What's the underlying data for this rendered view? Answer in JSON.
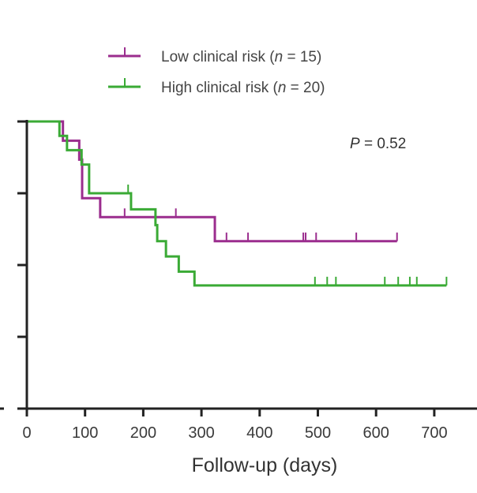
{
  "chart_data": {
    "type": "line",
    "subtype": "kaplan-meier",
    "title": "",
    "xlabel": "Follow-up (days)",
    "ylabel": "",
    "xlim": [
      0,
      750
    ],
    "ylim": [
      0,
      1
    ],
    "x_ticks": [
      0,
      100,
      200,
      300,
      400,
      500,
      600,
      700
    ],
    "x_tick_labels": [
      "0",
      "100",
      "200",
      "300",
      "400",
      "500",
      "600",
      "700"
    ],
    "y_ticks": [
      0,
      0.25,
      0.5,
      0.75,
      1.0
    ],
    "y_tick_labels": [
      "",
      "",
      "",
      "",
      ""
    ],
    "grid": false,
    "legend_position": "top-center",
    "annotation": {
      "prefix": "P",
      "text": " = 0.52"
    },
    "series": [
      {
        "name": "Low clinical risk",
        "n_label": "n",
        "n_value": "15",
        "color": "#9b2d8e",
        "steps": [
          {
            "x": 0,
            "y": 1.0
          },
          {
            "x": 62,
            "y": 0.933
          },
          {
            "x": 90,
            "y": 0.867
          },
          {
            "x": 95,
            "y": 0.733
          },
          {
            "x": 126,
            "y": 0.667
          },
          {
            "x": 323,
            "y": 0.583
          }
        ],
        "end_x": 636,
        "censored_x": [
          168,
          256,
          343,
          380,
          475,
          479,
          497,
          566,
          636
        ]
      },
      {
        "name": "High clinical risk",
        "n_label": "n",
        "n_value": "20",
        "color": "#3aaa35",
        "steps": [
          {
            "x": 0,
            "y": 1.0
          },
          {
            "x": 56,
            "y": 0.95
          },
          {
            "x": 69,
            "y": 0.9
          },
          {
            "x": 94,
            "y": 0.85
          },
          {
            "x": 107,
            "y": 0.75
          },
          {
            "x": 179,
            "y": 0.694
          },
          {
            "x": 221,
            "y": 0.639
          },
          {
            "x": 224,
            "y": 0.583
          },
          {
            "x": 239,
            "y": 0.53
          },
          {
            "x": 261,
            "y": 0.477
          },
          {
            "x": 288,
            "y": 0.429
          }
        ],
        "end_x": 721,
        "censored_x": [
          174,
          495,
          516,
          531,
          615,
          638,
          658,
          670,
          721
        ]
      }
    ]
  }
}
